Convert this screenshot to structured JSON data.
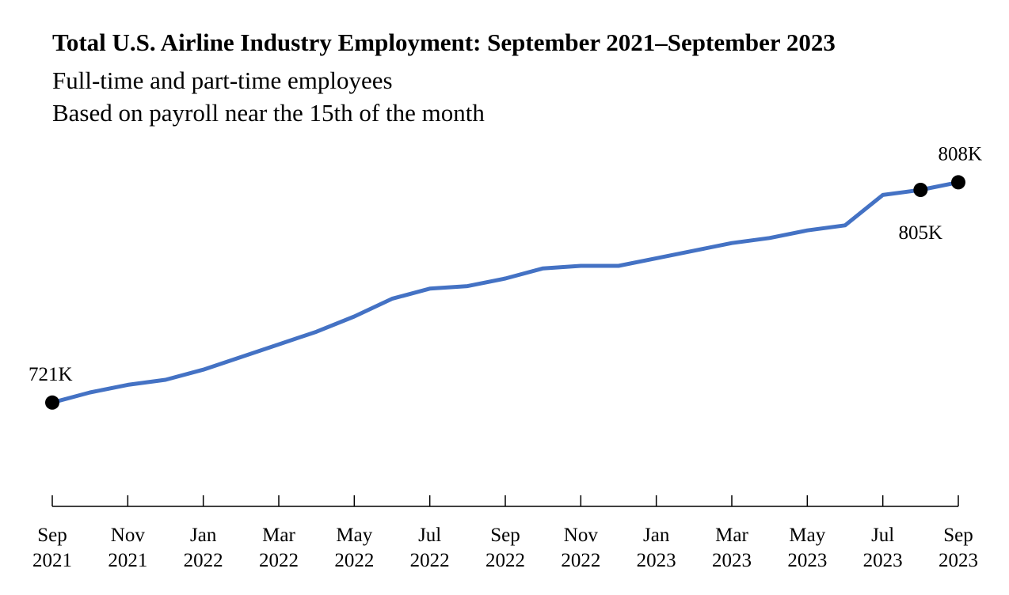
{
  "chart_data": {
    "type": "line",
    "title": "Total U.S. Airline Industry Employment: September 2021–September 2023",
    "subtitle": [
      "Full-time and part-time employees",
      "Based on payroll near the 15th of the month"
    ],
    "xlabel": "",
    "ylabel": "",
    "grid": false,
    "legend": "none",
    "x_tick_labels": [
      {
        "month": "Sep",
        "year": "2021"
      },
      {
        "month": "Nov",
        "year": "2021"
      },
      {
        "month": "Jan",
        "year": "2022"
      },
      {
        "month": "Mar",
        "year": "2022"
      },
      {
        "month": "May",
        "year": "2022"
      },
      {
        "month": "Jul",
        "year": "2022"
      },
      {
        "month": "Sep",
        "year": "2022"
      },
      {
        "month": "Nov",
        "year": "2022"
      },
      {
        "month": "Jan",
        "year": "2023"
      },
      {
        "month": "Mar",
        "year": "2023"
      },
      {
        "month": "May",
        "year": "2023"
      },
      {
        "month": "Jul",
        "year": "2023"
      },
      {
        "month": "Sep",
        "year": "2023"
      }
    ],
    "series": [
      {
        "color": "#4472c4",
        "x": [
          "2021-09",
          "2021-10",
          "2021-11",
          "2021-12",
          "2022-01",
          "2022-02",
          "2022-03",
          "2022-04",
          "2022-05",
          "2022-06",
          "2022-07",
          "2022-08",
          "2022-09",
          "2022-10",
          "2022-11",
          "2022-12",
          "2023-01",
          "2023-02",
          "2023-03",
          "2023-04",
          "2023-05",
          "2023-06",
          "2023-07",
          "2023-08",
          "2023-09"
        ],
        "values": [
          721,
          725,
          728,
          730,
          734,
          739,
          744,
          749,
          755,
          762,
          766,
          767,
          770,
          774,
          775,
          775,
          778,
          781,
          784,
          786,
          789,
          791,
          803,
          805,
          808
        ]
      }
    ],
    "annotations": [
      {
        "x": "2021-09",
        "value": 721,
        "text": "721K",
        "position": "above"
      },
      {
        "x": "2023-08",
        "value": 805,
        "text": "805K",
        "position": "below"
      },
      {
        "x": "2023-09",
        "value": 808,
        "text": "808K",
        "position": "above"
      }
    ],
    "ylim": [
      680,
      830
    ]
  }
}
